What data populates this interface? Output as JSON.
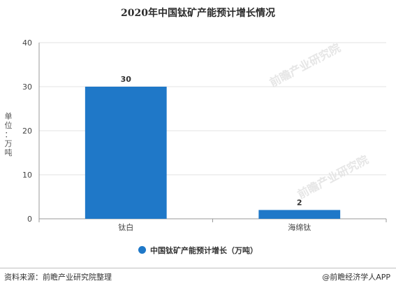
{
  "title": "2020年中国钛矿产能预计增长情况",
  "chart_data": {
    "type": "bar",
    "title": "2020年中国钛矿产能预计增长情况",
    "categories": [
      "钛白",
      "海绵钛"
    ],
    "series": [
      {
        "name": "中国钛矿产能预计增长（万吨）",
        "values": [
          30,
          2
        ],
        "color": "#1f78c8"
      }
    ],
    "ylabel": "单位：万吨",
    "xlabel": "",
    "ylim": [
      0,
      40
    ],
    "yticks": [
      0,
      10,
      20,
      30,
      40
    ],
    "grid": true,
    "legend_position": "bottom",
    "data_labels": [
      "30",
      "2"
    ]
  },
  "source": "资料来源：前瞻产业研究院整理",
  "brand": "@前瞻经济学人APP",
  "watermark": "前瞻产业研究院"
}
